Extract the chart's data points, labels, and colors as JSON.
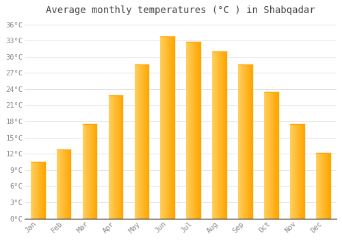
{
  "months": [
    "Jan",
    "Feb",
    "Mar",
    "Apr",
    "May",
    "Jun",
    "Jul",
    "Aug",
    "Sep",
    "Oct",
    "Nov",
    "Dec"
  ],
  "temperatures": [
    10.5,
    12.8,
    17.5,
    22.8,
    28.5,
    33.8,
    32.8,
    31.0,
    28.5,
    23.5,
    17.5,
    12.2
  ],
  "bar_color_left": "#FFD060",
  "bar_color_right": "#FFA500",
  "background_color": "#FFFFFF",
  "grid_color": "#DDDDDD",
  "title": "Average monthly temperatures (°C ) in Shabqadar",
  "title_fontsize": 10,
  "title_color": "#444444",
  "tick_color": "#888888",
  "ylim": [
    0,
    37
  ],
  "yticks": [
    0,
    3,
    6,
    9,
    12,
    15,
    18,
    21,
    24,
    27,
    30,
    33,
    36
  ],
  "font_family": "monospace",
  "bar_width": 0.55
}
